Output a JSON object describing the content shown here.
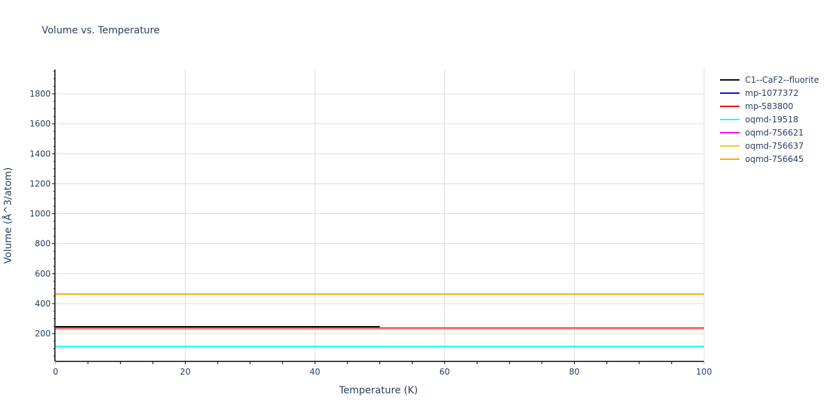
{
  "title": "Volume vs. Temperature",
  "chart_data": {
    "type": "line",
    "title": "Volume vs. Temperature",
    "xlabel": "Temperature (K)",
    "ylabel": "Volume (Å^3/atom)",
    "xlim": [
      0,
      100
    ],
    "ylim": [
      20,
      1960
    ],
    "x_ticks": [
      0,
      20,
      40,
      60,
      80,
      100
    ],
    "y_ticks": [
      200,
      400,
      600,
      800,
      1000,
      1200,
      1400,
      1600,
      1800
    ],
    "grid": true,
    "legend_position": "right",
    "series": [
      {
        "name": "C1--CaF2--fluorite",
        "color": "#000000",
        "x": [
          0,
          50
        ],
        "values": [
          246,
          246
        ]
      },
      {
        "name": "mp-1077372",
        "color": "#0000ff",
        "x": [
          0,
          100
        ],
        "values": [
          237,
          237
        ]
      },
      {
        "name": "mp-583800",
        "color": "#ff0000",
        "x": [
          0,
          100
        ],
        "values": [
          237,
          237
        ]
      },
      {
        "name": "oqmd-19518",
        "color": "#00ffff",
        "x": [
          0,
          100
        ],
        "values": [
          114,
          114
        ]
      },
      {
        "name": "oqmd-756621",
        "color": "#ff00ff",
        "x": [
          0,
          100
        ],
        "values": [
          237,
          237
        ]
      },
      {
        "name": "oqmd-756637",
        "color": "#f5c518",
        "x": [
          0,
          100
        ],
        "values": [
          230,
          230
        ]
      },
      {
        "name": "oqmd-756645",
        "color": "#ffa500",
        "x": [
          0,
          100
        ],
        "values": [
          464,
          464
        ]
      }
    ]
  },
  "axes": {
    "x_tick_labels": [
      "0",
      "20",
      "40",
      "60",
      "80",
      "100"
    ],
    "y_tick_labels": [
      "200",
      "400",
      "600",
      "800",
      "1000",
      "1200",
      "1400",
      "1600",
      "1800"
    ]
  },
  "legend": [
    {
      "label": "C1--CaF2--fluorite",
      "color": "#000000"
    },
    {
      "label": "mp-1077372",
      "color": "#0000ff"
    },
    {
      "label": "mp-583800",
      "color": "#ff0000"
    },
    {
      "label": "oqmd-19518",
      "color": "#00ffff"
    },
    {
      "label": "oqmd-756621",
      "color": "#ff00ff"
    },
    {
      "label": "oqmd-756637",
      "color": "#f5c518"
    },
    {
      "label": "oqmd-756645",
      "color": "#ffa500"
    }
  ]
}
